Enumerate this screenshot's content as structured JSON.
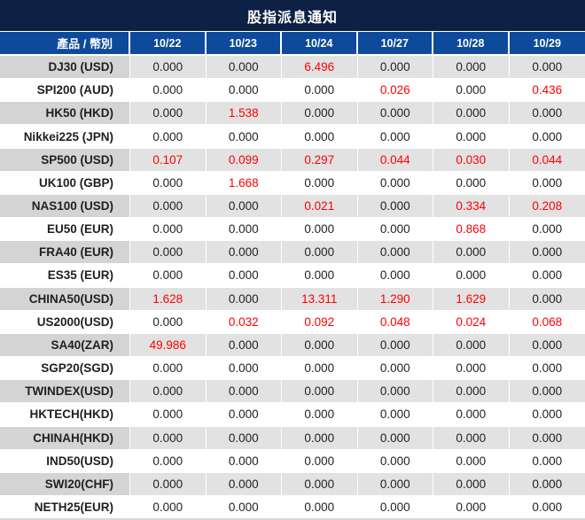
{
  "title": "股指派息通知",
  "colors": {
    "title_bar": "#0d2144",
    "header": "#0e4a9c",
    "row_gray_label": "#d4d4d4",
    "row_gray_value": "#e2e2e2",
    "row_white": "#ffffff",
    "value_red": "#fe0000",
    "text_dark": "#1f1f1f"
  },
  "chart_data": {
    "type": "table",
    "title": "股指派息通知",
    "columns_header": "產品 / 幣別",
    "columns": [
      "10/22",
      "10/23",
      "10/24",
      "10/27",
      "10/28",
      "10/29"
    ],
    "highlight_rule": "non-zero values rendered in red",
    "rows": [
      {
        "product": "DJ30 (USD)",
        "values": [
          "0.000",
          "0.000",
          "6.496",
          "0.000",
          "0.000",
          "0.000"
        ]
      },
      {
        "product": "SPI200 (AUD)",
        "values": [
          "0.000",
          "0.000",
          "0.000",
          "0.026",
          "0.000",
          "0.436"
        ]
      },
      {
        "product": "HK50 (HKD)",
        "values": [
          "0.000",
          "1.538",
          "0.000",
          "0.000",
          "0.000",
          "0.000"
        ]
      },
      {
        "product": "Nikkei225 (JPN)",
        "values": [
          "0.000",
          "0.000",
          "0.000",
          "0.000",
          "0.000",
          "0.000"
        ]
      },
      {
        "product": "SP500 (USD)",
        "values": [
          "0.107",
          "0.099",
          "0.297",
          "0.044",
          "0.030",
          "0.044"
        ]
      },
      {
        "product": "UK100 (GBP)",
        "values": [
          "0.000",
          "1.668",
          "0.000",
          "0.000",
          "0.000",
          "0.000"
        ]
      },
      {
        "product": "NAS100 (USD)",
        "values": [
          "0.000",
          "0.000",
          "0.021",
          "0.000",
          "0.334",
          "0.208"
        ]
      },
      {
        "product": "EU50 (EUR)",
        "values": [
          "0.000",
          "0.000",
          "0.000",
          "0.000",
          "0.868",
          "0.000"
        ]
      },
      {
        "product": "FRA40 (EUR)",
        "values": [
          "0.000",
          "0.000",
          "0.000",
          "0.000",
          "0.000",
          "0.000"
        ]
      },
      {
        "product": "ES35 (EUR)",
        "values": [
          "0.000",
          "0.000",
          "0.000",
          "0.000",
          "0.000",
          "0.000"
        ]
      },
      {
        "product": "CHINA50(USD)",
        "values": [
          "1.628",
          "0.000",
          "13.311",
          "1.290",
          "1.629",
          "0.000"
        ]
      },
      {
        "product": "US2000(USD)",
        "values": [
          "0.000",
          "0.032",
          "0.092",
          "0.048",
          "0.024",
          "0.068"
        ]
      },
      {
        "product": "SA40(ZAR)",
        "values": [
          "49.986",
          "0.000",
          "0.000",
          "0.000",
          "0.000",
          "0.000"
        ]
      },
      {
        "product": "SGP20(SGD)",
        "values": [
          "0.000",
          "0.000",
          "0.000",
          "0.000",
          "0.000",
          "0.000"
        ]
      },
      {
        "product": "TWINDEX(USD)",
        "values": [
          "0.000",
          "0.000",
          "0.000",
          "0.000",
          "0.000",
          "0.000"
        ]
      },
      {
        "product": "HKTECH(HKD)",
        "values": [
          "0.000",
          "0.000",
          "0.000",
          "0.000",
          "0.000",
          "0.000"
        ]
      },
      {
        "product": "CHINAH(HKD)",
        "values": [
          "0.000",
          "0.000",
          "0.000",
          "0.000",
          "0.000",
          "0.000"
        ]
      },
      {
        "product": "IND50(USD)",
        "values": [
          "0.000",
          "0.000",
          "0.000",
          "0.000",
          "0.000",
          "0.000"
        ]
      },
      {
        "product": "SWI20(CHF)",
        "values": [
          "0.000",
          "0.000",
          "0.000",
          "0.000",
          "0.000",
          "0.000"
        ]
      },
      {
        "product": "NETH25(EUR)",
        "values": [
          "0.000",
          "0.000",
          "0.000",
          "0.000",
          "0.000",
          "0.000"
        ]
      }
    ]
  }
}
